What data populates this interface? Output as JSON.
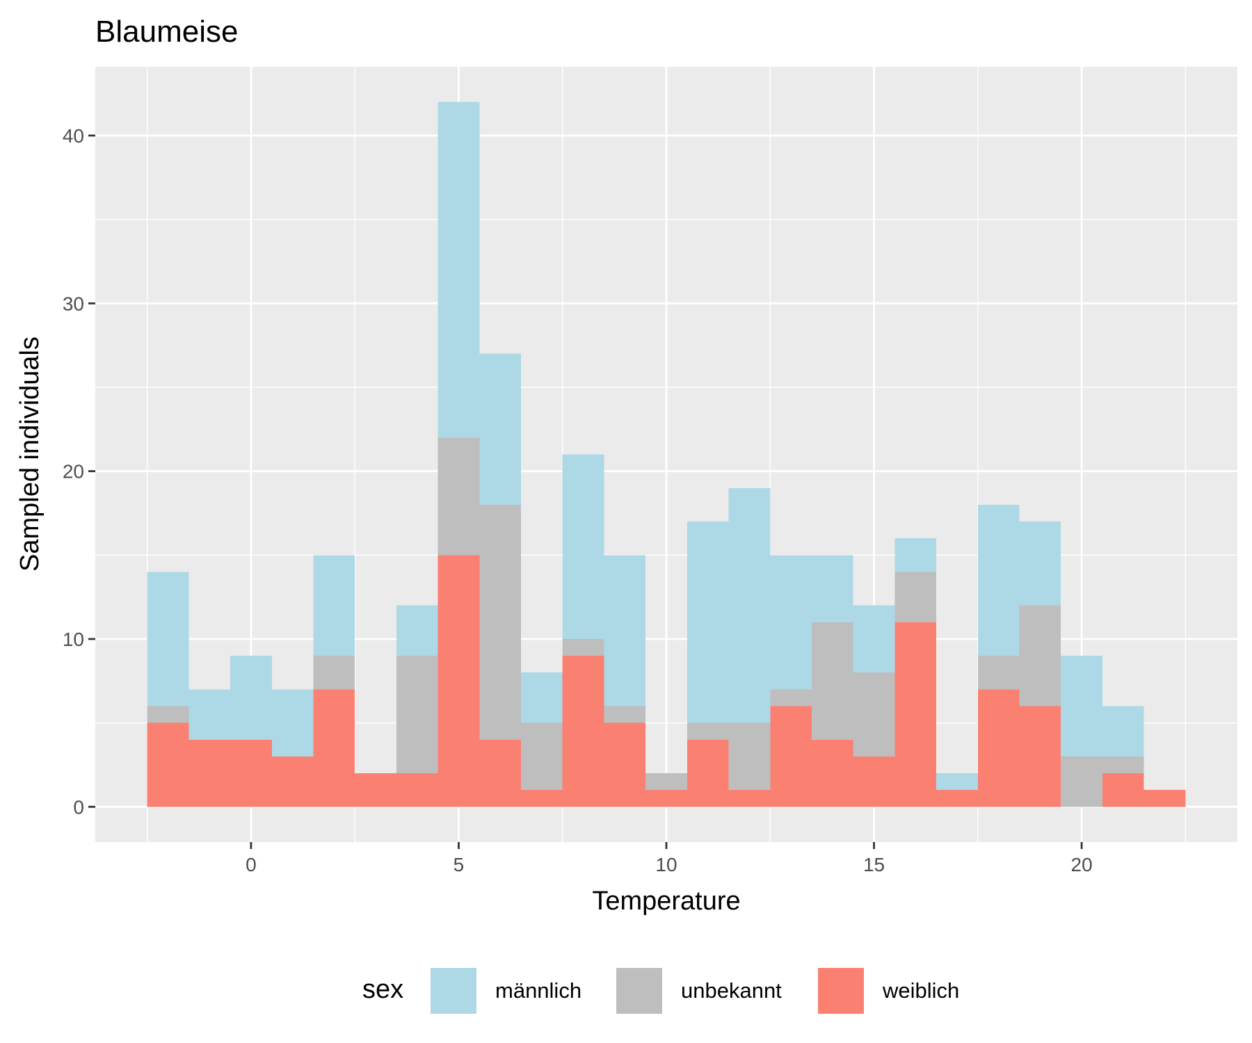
{
  "chart_data": {
    "type": "bar",
    "title": "Blaumeise",
    "xlabel": "Temperature",
    "ylabel": "Sampled individuals",
    "xlim": [
      -3.75,
      23.75
    ],
    "ylim": [
      -2.1,
      44.1
    ],
    "grid": true,
    "stacked": true,
    "bin_width": 1,
    "x": [
      -2,
      -1,
      0,
      1,
      2,
      3,
      4,
      5,
      6,
      7,
      8,
      9,
      10,
      11,
      12,
      13,
      14,
      15,
      16,
      17,
      18,
      19,
      20,
      21,
      22
    ],
    "x_ticks": [
      0,
      5,
      10,
      15,
      20
    ],
    "y_ticks": [
      0,
      10,
      20,
      30,
      40
    ],
    "legend": {
      "title": "sex",
      "position": "bottom"
    },
    "series": [
      {
        "name": "weiblich",
        "color": "#fa8072",
        "values": [
          5,
          4,
          4,
          3,
          7,
          2,
          2,
          15,
          4,
          1,
          9,
          5,
          1,
          4,
          1,
          6,
          4,
          3,
          11,
          1,
          7,
          6,
          0,
          2,
          1
        ]
      },
      {
        "name": "unbekannt",
        "color": "#bebebe",
        "values": [
          1,
          0,
          0,
          0,
          2,
          0,
          7,
          7,
          14,
          4,
          1,
          1,
          1,
          1,
          4,
          1,
          7,
          5,
          3,
          0,
          2,
          6,
          3,
          1,
          0
        ]
      },
      {
        "name": "männlich",
        "color": "#add8e6",
        "values": [
          8,
          3,
          5,
          4,
          6,
          0,
          3,
          20,
          9,
          3,
          11,
          9,
          0,
          12,
          14,
          8,
          4,
          4,
          2,
          1,
          9,
          5,
          6,
          3,
          0
        ]
      }
    ],
    "legend_order": [
      "männlich",
      "unbekannt",
      "weiblich"
    ]
  }
}
